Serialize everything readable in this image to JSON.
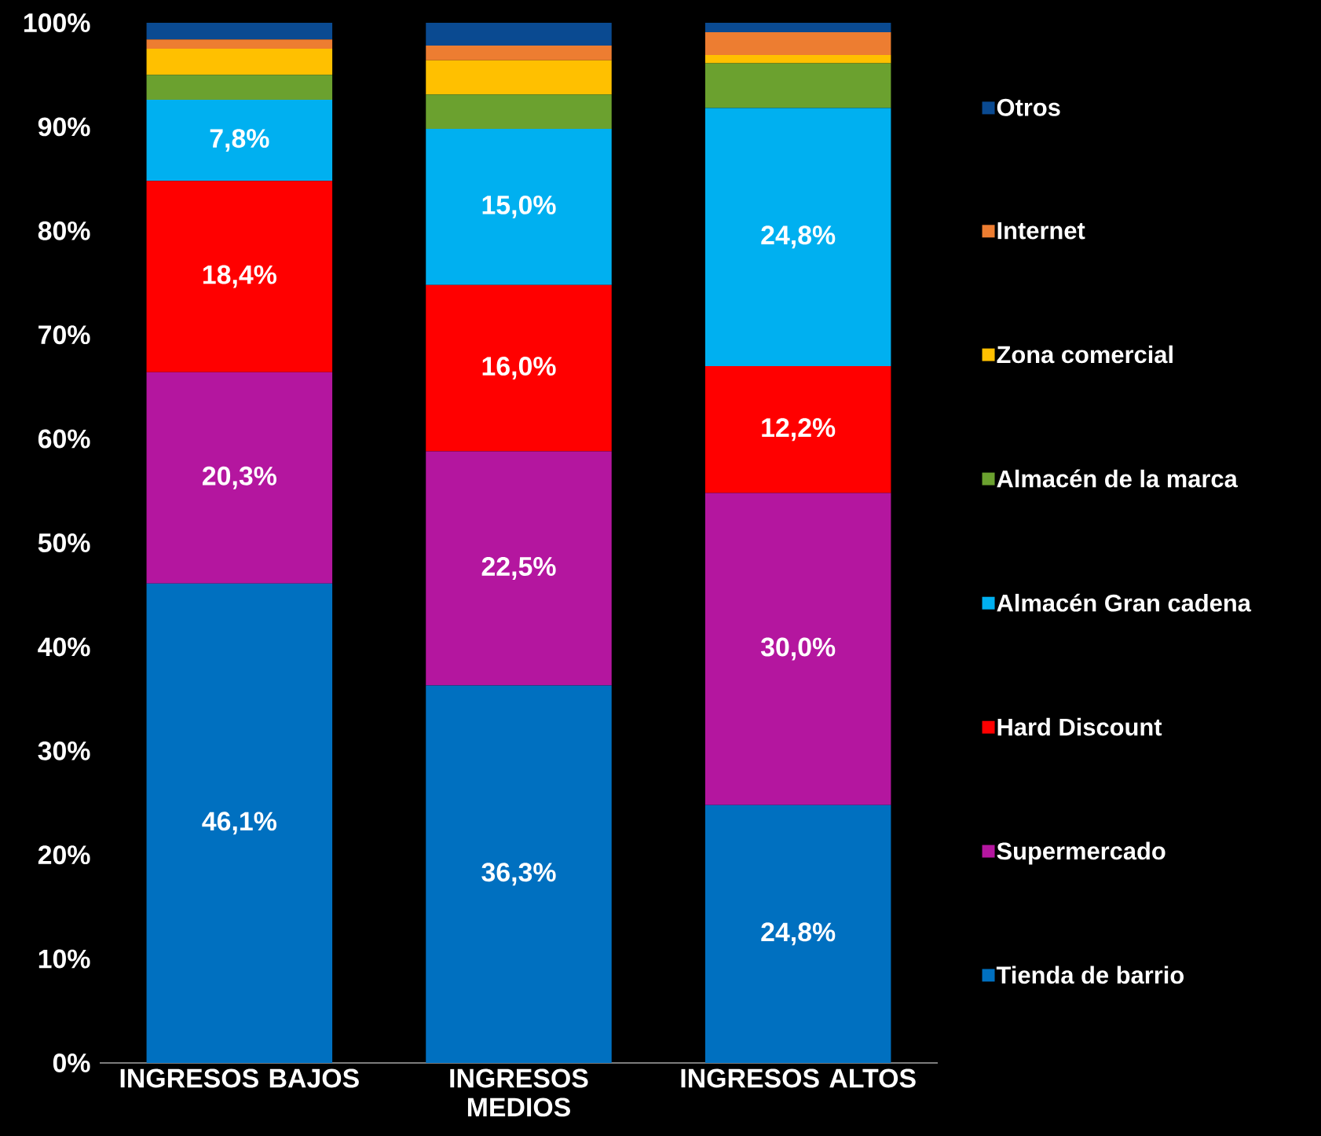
{
  "chart_data": {
    "type": "bar",
    "stacked": true,
    "legend": "right",
    "categories": [
      "INGRESOS BAJOS",
      "INGRESOS MEDIOS",
      "INGRESOS ALTOS"
    ],
    "ylim": [
      0,
      100
    ],
    "yticks": [
      {
        "value": 0,
        "label": "0%"
      },
      {
        "value": 10,
        "label": "10%"
      },
      {
        "value": 20,
        "label": "20%"
      },
      {
        "value": 30,
        "label": "30%"
      },
      {
        "value": 40,
        "label": "40%"
      },
      {
        "value": 50,
        "label": "50%"
      },
      {
        "value": 60,
        "label": "60%"
      },
      {
        "value": 70,
        "label": "70%"
      },
      {
        "value": 80,
        "label": "80%"
      },
      {
        "value": 90,
        "label": "90%"
      },
      {
        "value": 100,
        "label": "100%"
      }
    ],
    "series": [
      {
        "name": "Tienda de barrio",
        "color": "#0070c0",
        "values": [
          46.1,
          36.3,
          24.8
        ],
        "value_labels": [
          "46,1%",
          "36,3%",
          "24,8%"
        ]
      },
      {
        "name": "Supermercado",
        "color": "#b4169f",
        "values": [
          20.3,
          22.5,
          30.0
        ],
        "value_labels": [
          "20,3%",
          "22,5%",
          "30,0%"
        ]
      },
      {
        "name": "Hard Discount",
        "color": "#ff0000",
        "values": [
          18.4,
          16.0,
          12.2
        ],
        "value_labels": [
          "18,4%",
          "16,0%",
          "12,2%"
        ]
      },
      {
        "name": "Almacén Gran cadena",
        "color": "#00b0f0",
        "values": [
          7.8,
          15.0,
          24.8
        ],
        "value_labels": [
          "7,8%",
          "15,0%",
          "24,8%"
        ]
      },
      {
        "name": "Almacén de la marca",
        "color": "#6ba12f",
        "values": [
          2.4,
          3.3,
          4.3
        ]
      },
      {
        "name": "Zona comercial",
        "color": "#ffc000",
        "values": [
          2.5,
          3.3,
          0.8
        ]
      },
      {
        "name": "Internet",
        "color": "#ed7d31",
        "values": [
          0.9,
          1.4,
          2.2
        ]
      },
      {
        "name": "Otros",
        "color": "#0a4a91",
        "values": [
          1.6,
          2.2,
          0.9
        ]
      }
    ]
  }
}
